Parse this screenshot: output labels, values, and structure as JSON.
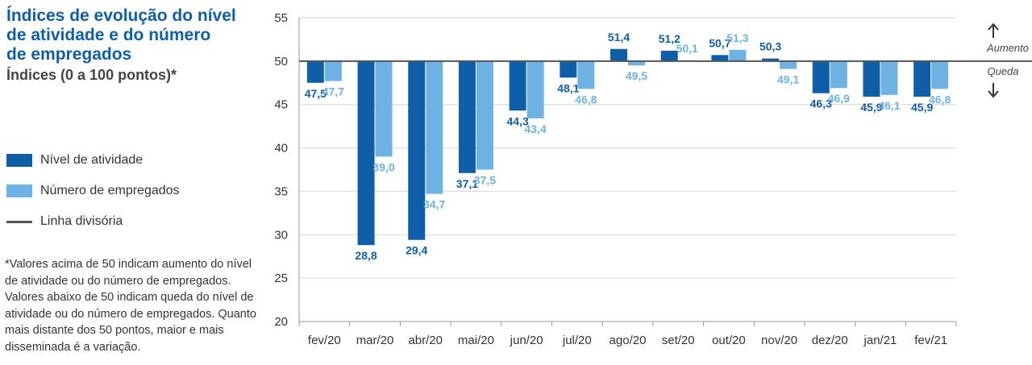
{
  "title_lines": [
    "Índices de evolução do nível",
    "de atividade e do número",
    "de empregados"
  ],
  "subtitle": "Índices (0 a 100 pontos)*",
  "legend": [
    {
      "label": "Nível de atividade",
      "color": "#0f5fa8",
      "kind": "bar"
    },
    {
      "label": "Número de empregados",
      "color": "#6eb2e4",
      "kind": "bar"
    },
    {
      "label": "Linha divisória",
      "color": "#555555",
      "kind": "line"
    }
  ],
  "note": "*Valores acima de 50 indicam aumento do nível de atividade ou do número de empregados. Valores abaixo de 50 indicam queda do nível de atividade ou do número de empregados. Quanto mais distante dos 50 pontos, maior e mais disseminada é a variação.",
  "side_labels": {
    "up": "Aumento",
    "down": "Queda"
  },
  "chart_data": {
    "type": "bar",
    "baseline": 50,
    "ylim": [
      20,
      55
    ],
    "yticks": [
      20,
      25,
      30,
      35,
      40,
      45,
      50,
      55
    ],
    "grid": true,
    "categories": [
      "fev/20",
      "mar/20",
      "abr/20",
      "mai/20",
      "jun/20",
      "jul/20",
      "ago/20",
      "set/20",
      "out/20",
      "nov/20",
      "dez/20",
      "jan/21",
      "fev/21"
    ],
    "series": [
      {
        "name": "Nível de atividade",
        "color": "#0f5fa8",
        "label_color": "#0f5fa8",
        "values": [
          47.5,
          28.8,
          29.4,
          37.1,
          44.3,
          48.1,
          51.4,
          51.2,
          50.7,
          50.3,
          46.3,
          45.9,
          45.9
        ],
        "labels": [
          "47,5",
          "28,8",
          "29,4",
          "37,1",
          "44,3",
          "48,1",
          "51,4",
          "51,2",
          "50,7",
          "50,3",
          "46,3",
          "45,9",
          "45,9"
        ]
      },
      {
        "name": "Número de empregados",
        "color": "#6eb2e4",
        "label_color": "#6eb2e4",
        "values": [
          47.7,
          39.0,
          34.7,
          37.5,
          43.4,
          46.8,
          49.5,
          50.1,
          51.3,
          49.1,
          46.9,
          46.1,
          46.8
        ],
        "labels": [
          "47,7",
          "39,0",
          "34,7",
          "37,5",
          "43,4",
          "46,8",
          "49,5",
          "50,1",
          "51,3",
          "49,1",
          "46,9",
          "46,1",
          "46,8"
        ]
      }
    ]
  }
}
